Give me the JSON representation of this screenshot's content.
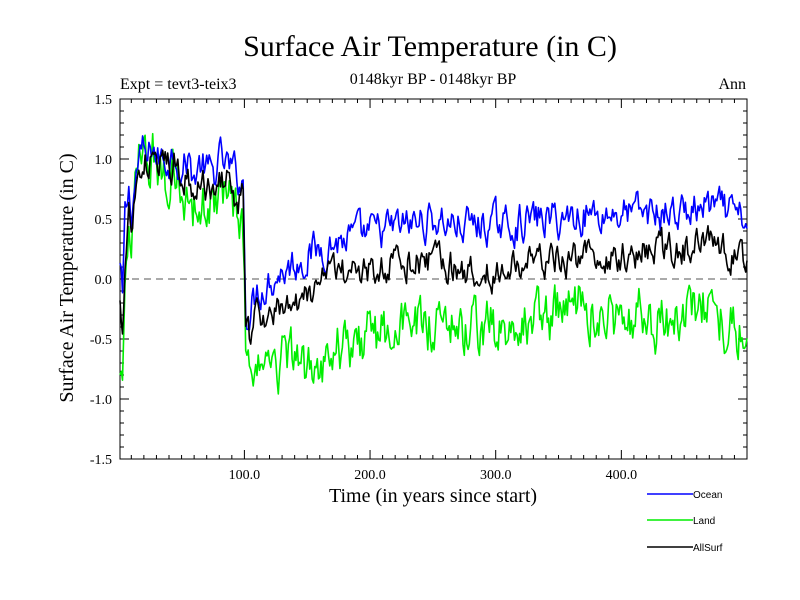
{
  "chart_data": {
    "type": "line",
    "title": "Surface Air Temperature (in C)",
    "subtitle_left": "Expt = tevt3-teix3",
    "subtitle_center": "0148kyr BP - 0148kyr BP",
    "subtitle_right": "Ann",
    "xlabel": "Time (in years since start)",
    "ylabel": "Surface Air Temperature (in C)",
    "xlim": [
      1,
      500
    ],
    "ylim": [
      -1.5,
      1.5
    ],
    "x_ticks": [
      100,
      200,
      300,
      400
    ],
    "x_tick_labels": [
      "100.0",
      "200.0",
      "300.0",
      "400.0"
    ],
    "y_ticks": [
      -1.5,
      -1.0,
      -0.5,
      0.0,
      0.5,
      1.0,
      1.5
    ],
    "y_tick_labels": [
      "-1.5",
      "-1.0",
      "-0.5",
      "0.0",
      "0.5",
      "1.0",
      "1.5"
    ],
    "reference_line": 0.0,
    "legend_position": "bottom-right",
    "series": [
      {
        "name": "Ocean",
        "color": "#0000ff",
        "keypoints": [
          [
            1,
            0.1
          ],
          [
            3,
            -0.2
          ],
          [
            5,
            0.5
          ],
          [
            8,
            0.7
          ],
          [
            10,
            0.55
          ],
          [
            13,
            0.8
          ],
          [
            16,
            1.0
          ],
          [
            20,
            1.05
          ],
          [
            23,
            0.95
          ],
          [
            27,
            1.15
          ],
          [
            30,
            1.0
          ],
          [
            35,
            1.0
          ],
          [
            40,
            1.0
          ],
          [
            45,
            1.1
          ],
          [
            50,
            0.9
          ],
          [
            55,
            1.0
          ],
          [
            60,
            0.85
          ],
          [
            65,
            0.95
          ],
          [
            70,
            0.9
          ],
          [
            75,
            0.85
          ],
          [
            80,
            1.0
          ],
          [
            85,
            0.95
          ],
          [
            90,
            0.9
          ],
          [
            95,
            0.85
          ],
          [
            99,
            0.8
          ],
          [
            101,
            -0.2
          ],
          [
            104,
            -0.3
          ],
          [
            110,
            -0.1
          ],
          [
            120,
            0.0
          ],
          [
            135,
            0.1
          ],
          [
            150,
            0.2
          ],
          [
            170,
            0.3
          ],
          [
            190,
            0.35
          ],
          [
            210,
            0.4
          ],
          [
            230,
            0.45
          ],
          [
            250,
            0.5
          ],
          [
            270,
            0.45
          ],
          [
            290,
            0.45
          ],
          [
            310,
            0.45
          ],
          [
            330,
            0.5
          ],
          [
            350,
            0.5
          ],
          [
            370,
            0.55
          ],
          [
            390,
            0.55
          ],
          [
            410,
            0.55
          ],
          [
            430,
            0.55
          ],
          [
            450,
            0.55
          ],
          [
            470,
            0.6
          ],
          [
            485,
            0.55
          ],
          [
            500,
            0.45
          ]
        ],
        "noise_amplitude": 0.13
      },
      {
        "name": "Land",
        "color": "#00ee00",
        "keypoints": [
          [
            1,
            -0.6
          ],
          [
            3,
            -0.8
          ],
          [
            5,
            -0.3
          ],
          [
            8,
            0.2
          ],
          [
            10,
            0.3
          ],
          [
            13,
            0.7
          ],
          [
            16,
            0.9
          ],
          [
            20,
            1.0
          ],
          [
            23,
            0.95
          ],
          [
            27,
            1.1
          ],
          [
            30,
            1.0
          ],
          [
            35,
            0.85
          ],
          [
            40,
            0.8
          ],
          [
            45,
            0.95
          ],
          [
            50,
            0.75
          ],
          [
            55,
            0.7
          ],
          [
            60,
            0.6
          ],
          [
            65,
            0.6
          ],
          [
            70,
            0.55
          ],
          [
            75,
            0.65
          ],
          [
            80,
            0.75
          ],
          [
            85,
            0.7
          ],
          [
            90,
            0.5
          ],
          [
            95,
            0.45
          ],
          [
            99,
            0.35
          ],
          [
            101,
            -0.5
          ],
          [
            104,
            -0.6
          ],
          [
            110,
            -0.75
          ],
          [
            120,
            -0.7
          ],
          [
            135,
            -0.7
          ],
          [
            150,
            -0.75
          ],
          [
            170,
            -0.6
          ],
          [
            190,
            -0.5
          ],
          [
            210,
            -0.45
          ],
          [
            230,
            -0.4
          ],
          [
            250,
            -0.35
          ],
          [
            270,
            -0.45
          ],
          [
            290,
            -0.45
          ],
          [
            310,
            -0.4
          ],
          [
            330,
            -0.35
          ],
          [
            350,
            -0.3
          ],
          [
            370,
            -0.25
          ],
          [
            390,
            -0.35
          ],
          [
            410,
            -0.3
          ],
          [
            430,
            -0.35
          ],
          [
            450,
            -0.3
          ],
          [
            470,
            -0.25
          ],
          [
            485,
            -0.35
          ],
          [
            500,
            -0.5
          ]
        ],
        "noise_amplitude": 0.2
      },
      {
        "name": "AllSurf",
        "color": "#000000",
        "keypoints": [
          [
            1,
            -0.15
          ],
          [
            3,
            -0.4
          ],
          [
            5,
            0.25
          ],
          [
            8,
            0.55
          ],
          [
            10,
            0.45
          ],
          [
            13,
            0.75
          ],
          [
            16,
            0.95
          ],
          [
            20,
            1.0
          ],
          [
            23,
            0.95
          ],
          [
            27,
            1.1
          ],
          [
            30,
            0.95
          ],
          [
            35,
            0.95
          ],
          [
            40,
            0.9
          ],
          [
            45,
            1.0
          ],
          [
            50,
            0.85
          ],
          [
            55,
            0.85
          ],
          [
            60,
            0.75
          ],
          [
            65,
            0.8
          ],
          [
            70,
            0.75
          ],
          [
            75,
            0.75
          ],
          [
            80,
            0.85
          ],
          [
            85,
            0.85
          ],
          [
            90,
            0.75
          ],
          [
            95,
            0.7
          ],
          [
            99,
            0.65
          ],
          [
            101,
            -0.3
          ],
          [
            104,
            -0.45
          ],
          [
            110,
            -0.35
          ],
          [
            120,
            -0.25
          ],
          [
            135,
            -0.2
          ],
          [
            150,
            -0.15
          ],
          [
            170,
            0.0
          ],
          [
            190,
            0.05
          ],
          [
            210,
            0.1
          ],
          [
            230,
            0.15
          ],
          [
            250,
            0.15
          ],
          [
            270,
            0.1
          ],
          [
            290,
            0.05
          ],
          [
            310,
            0.1
          ],
          [
            330,
            0.15
          ],
          [
            350,
            0.15
          ],
          [
            370,
            0.2
          ],
          [
            390,
            0.2
          ],
          [
            410,
            0.2
          ],
          [
            430,
            0.25
          ],
          [
            450,
            0.25
          ],
          [
            470,
            0.3
          ],
          [
            485,
            0.25
          ],
          [
            500,
            0.1
          ]
        ],
        "noise_amplitude": 0.12
      }
    ]
  }
}
